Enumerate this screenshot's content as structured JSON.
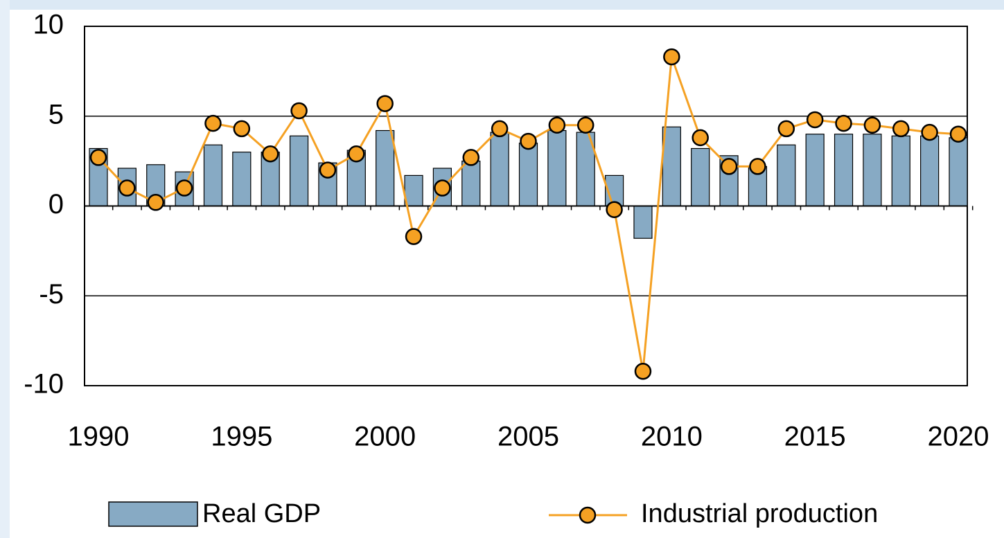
{
  "chart_data": {
    "type": "bar-line",
    "categories": [
      "1990",
      null,
      null,
      null,
      null,
      "1995",
      null,
      null,
      null,
      null,
      "2000",
      null,
      null,
      null,
      null,
      "2005",
      null,
      null,
      null,
      null,
      "2010",
      null,
      null,
      null,
      null,
      "2015",
      null,
      null,
      null,
      null,
      "2020"
    ],
    "series": [
      {
        "name": "Real GDP",
        "type": "bar",
        "color": "#87aac4",
        "values": [
          3.2,
          2.1,
          2.3,
          1.9,
          3.4,
          3.0,
          3.0,
          3.9,
          2.4,
          3.1,
          4.2,
          1.7,
          2.1,
          2.5,
          4.1,
          3.5,
          4.2,
          4.1,
          1.7,
          -1.8,
          4.4,
          3.2,
          2.8,
          2.2,
          3.4,
          4.0,
          4.0,
          4.0,
          3.9,
          3.9,
          3.8
        ]
      },
      {
        "name": "Industrial production",
        "type": "line",
        "color": "#f5a123",
        "values": [
          2.7,
          1.0,
          0.2,
          1.0,
          4.6,
          4.3,
          2.9,
          5.3,
          2.0,
          2.9,
          5.7,
          -1.7,
          1.0,
          2.7,
          4.3,
          3.6,
          4.5,
          4.5,
          -0.2,
          -9.2,
          8.3,
          3.8,
          2.2,
          2.2,
          4.3,
          4.8,
          4.6,
          4.5,
          4.3,
          4.1,
          4.0
        ]
      }
    ],
    "ylim": [
      -10,
      10
    ],
    "yticks": [
      -10,
      -5,
      0,
      5,
      10
    ],
    "grid": true
  }
}
